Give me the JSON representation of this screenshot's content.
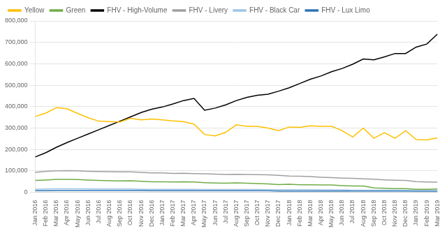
{
  "chart_data": {
    "type": "line",
    "categories": [
      "Jan 2016",
      "Feb 2016",
      "Mar 2016",
      "Apr 2016",
      "May 2016",
      "Jun 2016",
      "Jul 2016",
      "Aug 2016",
      "Sep 2016",
      "Oct 2016",
      "Nov 2016",
      "Dec 2016",
      "Jan 2017",
      "Feb 2017",
      "Mar 2017",
      "Apr 2017",
      "May 2017",
      "Jun 2017",
      "Jul 2017",
      "Aug 2017",
      "Sep 2017",
      "Oct 2017",
      "Nov 2017",
      "Dec 2017",
      "Jan 2018",
      "Feb 2018",
      "Mar 2018",
      "Apr 2018",
      "May 2018",
      "Jun 2018",
      "Jul 2018",
      "Aug 2018",
      "Sep 2018",
      "Oct 2018",
      "Nov 2018",
      "Dec 2018",
      "Jan 2019",
      "Feb 2019",
      "Mar 2019"
    ],
    "series": [
      {
        "name": "Yellow",
        "color": "#FFC000",
        "values": [
          354000,
          370000,
          395000,
          390000,
          368000,
          348000,
          332000,
          330000,
          328000,
          345000,
          338000,
          342000,
          338000,
          333000,
          330000,
          318000,
          270000,
          263000,
          280000,
          315000,
          308000,
          308000,
          300000,
          288000,
          305000,
          303000,
          310000,
          308000,
          308000,
          288000,
          258000,
          300000,
          252000,
          278000,
          252000,
          288000,
          246000,
          244000,
          254000
        ]
      },
      {
        "name": "Green",
        "color": "#70AD47",
        "values": [
          55000,
          57000,
          60000,
          60000,
          59000,
          57000,
          55000,
          54000,
          53000,
          54000,
          51000,
          49000,
          49000,
          48000,
          49000,
          48000,
          45000,
          43000,
          42000,
          44000,
          42000,
          41000,
          39000,
          36000,
          37000,
          35000,
          35000,
          34000,
          34000,
          31000,
          29000,
          29000,
          20000,
          19000,
          17000,
          17000,
          14000,
          14000,
          15000
        ]
      },
      {
        "name": "FHV - High-Volume",
        "color": "#000000",
        "values": [
          165000,
          185000,
          210000,
          232000,
          252000,
          272000,
          292000,
          312000,
          332000,
          352000,
          372000,
          388000,
          398000,
          412000,
          428000,
          438000,
          383000,
          393000,
          408000,
          428000,
          443000,
          453000,
          458000,
          472000,
          488000,
          508000,
          528000,
          543000,
          563000,
          578000,
          598000,
          622000,
          618000,
          632000,
          648000,
          648000,
          678000,
          692000,
          738000
        ]
      },
      {
        "name": "FHV - Livery",
        "color": "#A0A0A0",
        "values": [
          93000,
          98000,
          100000,
          101000,
          100000,
          98000,
          97000,
          96000,
          95000,
          95000,
          93000,
          90000,
          90000,
          88000,
          89000,
          87000,
          86000,
          85000,
          83000,
          84000,
          83000,
          82000,
          81000,
          79000,
          76000,
          75000,
          73000,
          70000,
          68000,
          66000,
          65000,
          63000,
          61000,
          58000,
          56000,
          55000,
          50000,
          48000,
          47000
        ]
      },
      {
        "name": "FHV - Black Car",
        "color": "#9DC3E6",
        "values": [
          14000,
          15000,
          16000,
          16000,
          16000,
          15000,
          15000,
          15000,
          15000,
          15000,
          14000,
          14000,
          14000,
          14000,
          14000,
          14000,
          13000,
          13000,
          13000,
          13000,
          13000,
          13000,
          12000,
          12000,
          12000,
          12000,
          12000,
          11000,
          11000,
          11000,
          10000,
          10000,
          10000,
          10000,
          10000,
          10000,
          9000,
          9000,
          9000
        ]
      },
      {
        "name": "FHV - Lux Limo",
        "color": "#2E75B6",
        "values": [
          7000,
          7000,
          8000,
          8000,
          8000,
          8000,
          8000,
          8000,
          8000,
          8000,
          8000,
          7000,
          7000,
          7000,
          7000,
          7000,
          7000,
          7000,
          7000,
          7000,
          7000,
          7000,
          7000,
          6000,
          6000,
          6000,
          6000,
          6000,
          6000,
          6000,
          6000,
          6000,
          6000,
          6000,
          6000,
          6000,
          5000,
          5000,
          5000
        ]
      }
    ],
    "ylim": [
      0,
      800000
    ],
    "yticks": [
      0,
      {
        "value": 100000,
        "label": "100,000"
      },
      {
        "value": 200000,
        "label": "200,000"
      },
      {
        "value": 300000,
        "label": "300,000"
      },
      {
        "value": 400000,
        "label": "400,000"
      },
      {
        "value": 500000,
        "label": "500,000"
      },
      {
        "value": 600000,
        "label": "600,000"
      },
      {
        "value": 700000,
        "label": "700,000"
      },
      {
        "value": 800000,
        "label": "800,000"
      }
    ],
    "grid": true,
    "legend": "upper left"
  }
}
